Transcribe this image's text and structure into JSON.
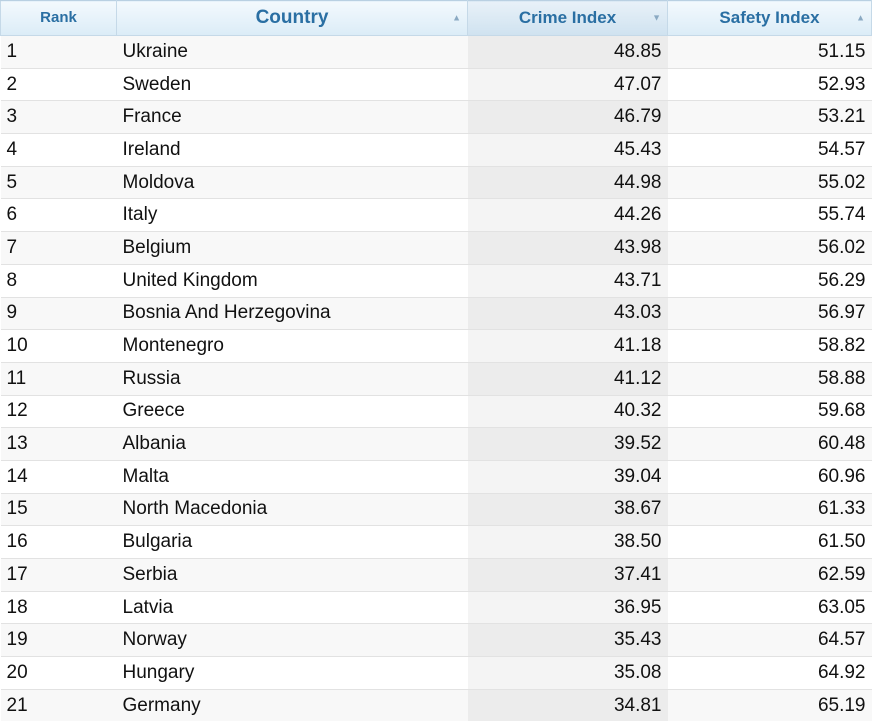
{
  "table": {
    "headers": {
      "rank": "Rank",
      "country": "Country",
      "crime": "Crime Index",
      "safety": "Safety Index"
    },
    "sort_icons": {
      "country": "▲",
      "crime": "▼",
      "safety": "▲"
    },
    "rows": [
      {
        "rank": "1",
        "country": "Ukraine",
        "crime": "48.85",
        "safety": "51.15"
      },
      {
        "rank": "2",
        "country": "Sweden",
        "crime": "47.07",
        "safety": "52.93"
      },
      {
        "rank": "3",
        "country": "France",
        "crime": "46.79",
        "safety": "53.21"
      },
      {
        "rank": "4",
        "country": "Ireland",
        "crime": "45.43",
        "safety": "54.57"
      },
      {
        "rank": "5",
        "country": "Moldova",
        "crime": "44.98",
        "safety": "55.02"
      },
      {
        "rank": "6",
        "country": "Italy",
        "crime": "44.26",
        "safety": "55.74"
      },
      {
        "rank": "7",
        "country": "Belgium",
        "crime": "43.98",
        "safety": "56.02"
      },
      {
        "rank": "8",
        "country": "United Kingdom",
        "crime": "43.71",
        "safety": "56.29"
      },
      {
        "rank": "9",
        "country": "Bosnia And Herzegovina",
        "crime": "43.03",
        "safety": "56.97"
      },
      {
        "rank": "10",
        "country": "Montenegro",
        "crime": "41.18",
        "safety": "58.82"
      },
      {
        "rank": "11",
        "country": "Russia",
        "crime": "41.12",
        "safety": "58.88"
      },
      {
        "rank": "12",
        "country": "Greece",
        "crime": "40.32",
        "safety": "59.68"
      },
      {
        "rank": "13",
        "country": "Albania",
        "crime": "39.52",
        "safety": "60.48"
      },
      {
        "rank": "14",
        "country": "Malta",
        "crime": "39.04",
        "safety": "60.96"
      },
      {
        "rank": "15",
        "country": "North Macedonia",
        "crime": "38.67",
        "safety": "61.33"
      },
      {
        "rank": "16",
        "country": "Bulgaria",
        "crime": "38.50",
        "safety": "61.50"
      },
      {
        "rank": "17",
        "country": "Serbia",
        "crime": "37.41",
        "safety": "62.59"
      },
      {
        "rank": "18",
        "country": "Latvia",
        "crime": "36.95",
        "safety": "63.05"
      },
      {
        "rank": "19",
        "country": "Norway",
        "crime": "35.43",
        "safety": "64.57"
      },
      {
        "rank": "20",
        "country": "Hungary",
        "crime": "35.08",
        "safety": "64.92"
      },
      {
        "rank": "21",
        "country": "Germany",
        "crime": "34.81",
        "safety": "65.19"
      }
    ]
  }
}
